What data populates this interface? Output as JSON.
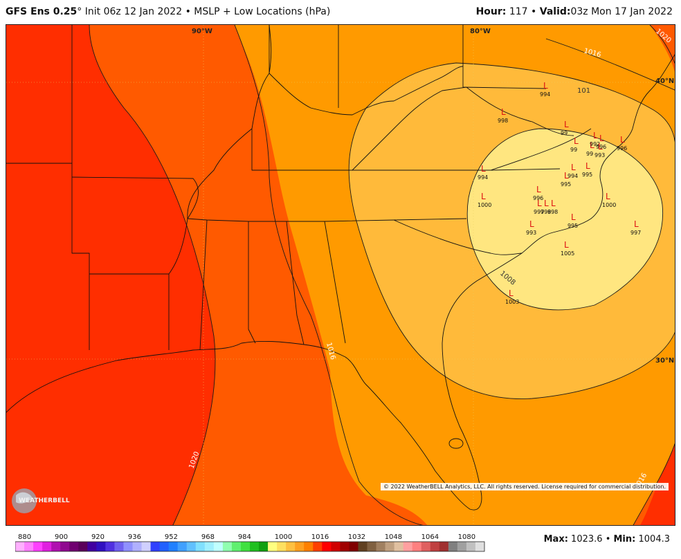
{
  "header": {
    "model": "GFS Ens 0.25",
    "degree": "°",
    "init": "Init 06z 12 Jan 2022",
    "bullet": "•",
    "product": "MSLP + Low Locations (hPa)",
    "hour_label": "Hour:",
    "hour_value": "117",
    "valid_label": "Valid:",
    "valid_value": "03z Mon 17 Jan 2022"
  },
  "map": {
    "lon_labels": [
      "90°W",
      "80°W"
    ],
    "lat_labels": [
      "40°N",
      "30°N"
    ],
    "contour_labels": [
      "1020",
      "1016",
      "1008",
      "1016",
      "1020",
      "1016",
      "101"
    ],
    "lows": [
      {
        "mark": "L",
        "value": "994"
      },
      {
        "mark": "L",
        "value": "998"
      },
      {
        "mark": "L",
        "value": "99"
      },
      {
        "mark": "L",
        "value": "99"
      },
      {
        "mark": "L",
        "value": "99"
      },
      {
        "mark": "L",
        "value": "992"
      },
      {
        "mark": "L",
        "value": "996"
      },
      {
        "mark": "L",
        "value": "993"
      },
      {
        "mark": "L",
        "value": "996"
      },
      {
        "mark": "L",
        "value": "994"
      },
      {
        "mark": "L",
        "value": "1000"
      },
      {
        "mark": "L",
        "value": "994"
      },
      {
        "mark": "L",
        "value": "995"
      },
      {
        "mark": "L",
        "value": "995"
      },
      {
        "mark": "L",
        "value": "996"
      },
      {
        "mark": "L",
        "value": "997"
      },
      {
        "mark": "L",
        "value": "998"
      },
      {
        "mark": "L",
        "value": "998"
      },
      {
        "mark": "L",
        "value": "1000"
      },
      {
        "mark": "L",
        "value": "993"
      },
      {
        "mark": "L",
        "value": "995"
      },
      {
        "mark": "L",
        "value": "997"
      },
      {
        "mark": "L",
        "value": "1005"
      },
      {
        "mark": "L",
        "value": "1003"
      }
    ],
    "logo_text": "WEATHERBELL",
    "copyright": "© 2022 WeatherBELL Analytics, LLC. All rights reserved. License required for commercial distribution.",
    "fill_colors": {
      "1024": "#ff2e00",
      "1020": "#ff5a00",
      "1016": "#ff9a00",
      "1012": "#ffba3a",
      "1008": "#ffe680"
    }
  },
  "colorbar": {
    "tick_labels": [
      "880",
      "900",
      "920",
      "936",
      "952",
      "968",
      "984",
      "1000",
      "1016",
      "1032",
      "1048",
      "1064",
      "1080"
    ],
    "colors": [
      "#ffb0ff",
      "#ff80ff",
      "#ff40ff",
      "#e020e0",
      "#b010b0",
      "#900890",
      "#700070",
      "#5a005a",
      "#4000a0",
      "#3010c0",
      "#5030e0",
      "#7060f0",
      "#9090ff",
      "#b0b0ff",
      "#d0d0ff",
      "#3040ff",
      "#2060ff",
      "#2080ff",
      "#40a0ff",
      "#60c0ff",
      "#80e0ff",
      "#a0f0ff",
      "#c0ffff",
      "#90ffb0",
      "#60f070",
      "#40e040",
      "#20c020",
      "#10a010",
      "#ffff80",
      "#ffe060",
      "#ffc040",
      "#ffa020",
      "#ff8000",
      "#ff4000",
      "#ff0000",
      "#d00000",
      "#a00000",
      "#800000",
      "#604020",
      "#806040",
      "#a08060",
      "#c0a080",
      "#e0c0a0",
      "#ffa0a0",
      "#ff8080",
      "#e06060",
      "#c04040",
      "#a03030",
      "#808080",
      "#a0a0a0",
      "#c0c0c0",
      "#e0e0e0"
    ]
  },
  "stats": {
    "max_label": "Max:",
    "max_value": "1023.6",
    "bullet": "•",
    "min_label": "Min:",
    "min_value": "1004.3"
  }
}
